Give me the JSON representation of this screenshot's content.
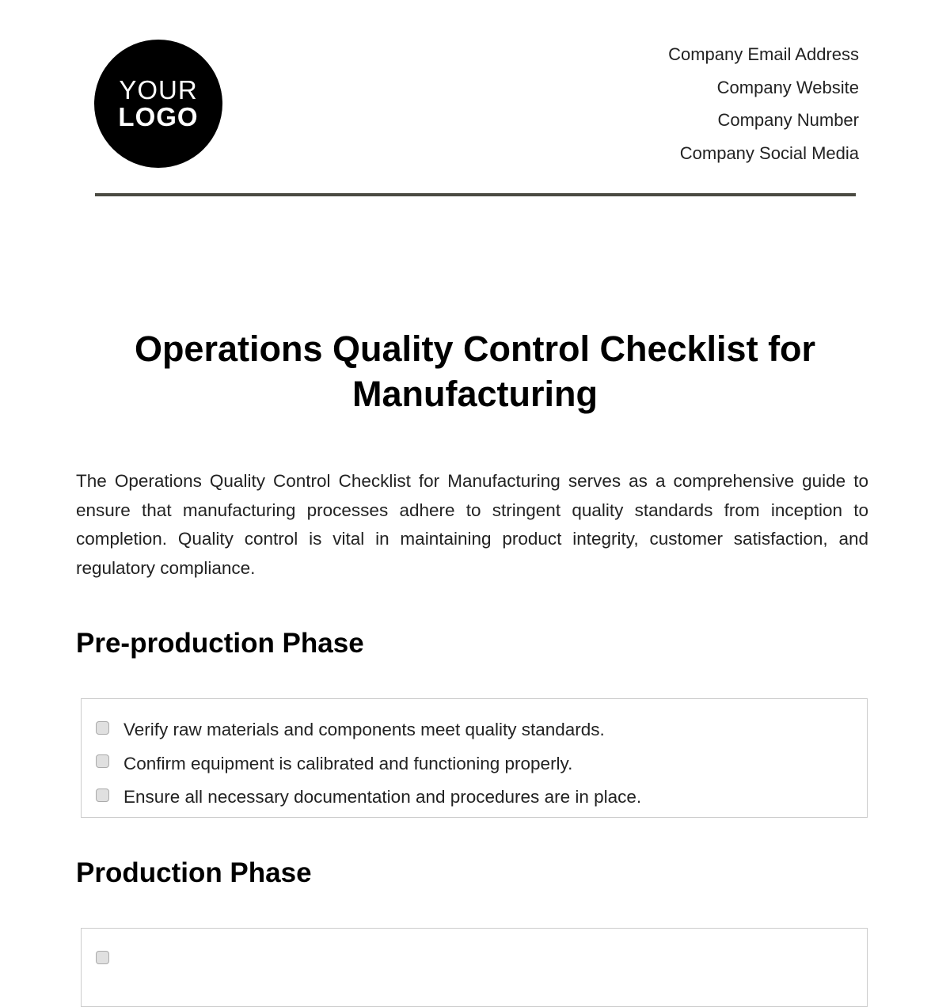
{
  "logo": {
    "line1": "YOUR",
    "line2": "LOGO"
  },
  "contact": [
    "Company Email Address",
    "Company Website",
    "Company Number",
    "Company Social Media"
  ],
  "title": "Operations Quality Control Checklist for Manufacturing",
  "intro": "The Operations Quality Control Checklist for Manufacturing serves as a comprehensive guide to ensure that manufacturing processes adhere to stringent quality standards from inception to completion. Quality control is vital in maintaining product integrity, customer satisfaction, and regulatory compliance.",
  "sections": [
    {
      "heading": "Pre-production Phase",
      "items": [
        {
          "label": "Verify raw materials and components meet quality standards.",
          "checked": false
        },
        {
          "label": "Confirm equipment is calibrated and functioning properly.",
          "checked": false
        },
        {
          "label": "Ensure all necessary documentation and procedures are in place.",
          "checked": false
        }
      ]
    },
    {
      "heading": "Production Phase",
      "items": []
    }
  ]
}
